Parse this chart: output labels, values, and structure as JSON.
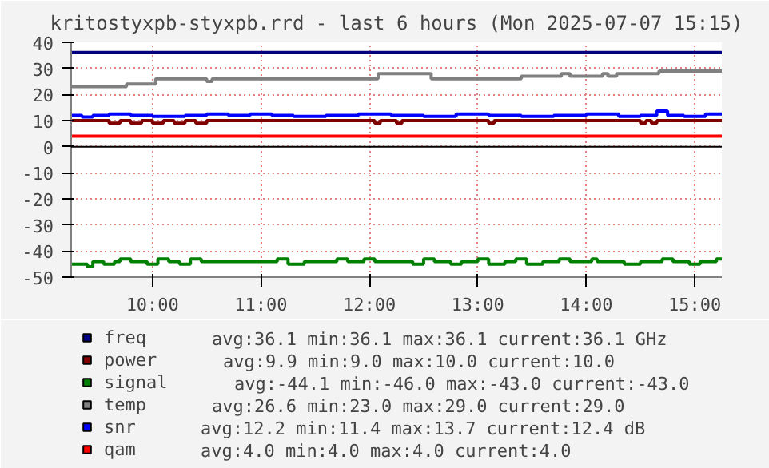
{
  "chart_data": {
    "type": "step",
    "title": "kritostyxpb-styxpb.rrd - last 6 hours (Mon 2025-07-07 15:15)",
    "xlim": [
      9.25,
      15.25
    ],
    "xticks": [
      {
        "value": 10,
        "label": "10:00"
      },
      {
        "value": 11,
        "label": "11:00"
      },
      {
        "value": 12,
        "label": "12:00"
      },
      {
        "value": 13,
        "label": "13:00"
      },
      {
        "value": 14,
        "label": "14:00"
      },
      {
        "value": 15,
        "label": "15:00"
      }
    ],
    "ylim": [
      -50,
      40
    ],
    "yticks": [
      -50,
      -40,
      -30,
      -20,
      -10,
      0,
      10,
      20,
      30,
      40
    ],
    "grid": true,
    "legend": "bottom",
    "ref_lines": [
      {
        "axis": "y",
        "value": 0,
        "color": "#000000"
      }
    ],
    "annotations": [
      "avg:36.1  min:36.1  max:36.1  current:36.1   GHz",
      "avg:9.9  min:9.0  max:10.0  current:10.0",
      "avg:-44.1  min:-46.0  max:-43.0  current:-43.0",
      "avg:26.6  min:23.0  max:29.0  current:29.0",
      "avg:12.2  min:11.4  max:13.7  current:12.4   dB",
      "avg:4.0  min:4.0  max:4.0  current:4.0"
    ],
    "series": [
      {
        "name": "freq",
        "color": "#000080",
        "x": [
          9.25,
          15.25
        ],
        "values": [
          36.1,
          36.1
        ]
      },
      {
        "name": "power",
        "color": "#800000",
        "x": [
          9.25,
          9.6,
          9.7,
          9.8,
          9.9,
          10.0,
          10.1,
          10.2,
          10.3,
          10.4,
          10.5,
          10.6,
          12.05,
          12.1,
          12.25,
          12.3,
          13.1,
          13.15,
          14.5,
          14.55,
          14.6,
          14.65,
          14.7,
          15.25
        ],
        "values": [
          10,
          9,
          10,
          9,
          10,
          9,
          10,
          9,
          10,
          9,
          10,
          10,
          9,
          10,
          9,
          10,
          9,
          10,
          9,
          10,
          9,
          10,
          10,
          10
        ]
      },
      {
        "name": "signal",
        "color": "#008000",
        "x": [
          9.25,
          9.4,
          9.45,
          9.55,
          9.65,
          9.7,
          9.8,
          9.95,
          10.05,
          10.15,
          10.25,
          10.35,
          10.45,
          10.6,
          11.15,
          11.25,
          11.4,
          11.7,
          11.8,
          11.95,
          12.05,
          12.4,
          12.5,
          12.6,
          12.75,
          12.85,
          13.0,
          13.1,
          13.25,
          13.35,
          13.45,
          13.6,
          13.75,
          13.85,
          14.05,
          14.1,
          14.35,
          14.5,
          14.7,
          14.8,
          14.95,
          15.05,
          15.2,
          15.25
        ],
        "values": [
          -45,
          -46,
          -44,
          -45,
          -44,
          -43,
          -44,
          -45,
          -43,
          -44,
          -45,
          -43,
          -44,
          -44,
          -43,
          -45,
          -44,
          -43,
          -44,
          -43,
          -44,
          -45,
          -43,
          -44,
          -45,
          -44,
          -43,
          -45,
          -44,
          -43,
          -45,
          -44,
          -43,
          -44,
          -43,
          -44,
          -45,
          -44,
          -43,
          -44,
          -45,
          -44,
          -43,
          -43
        ]
      },
      {
        "name": "temp",
        "color": "#808080",
        "x": [
          9.25,
          9.76,
          10.03,
          10.5,
          10.55,
          10.65,
          12.08,
          12.57,
          13.4,
          13.77,
          13.85,
          14.15,
          14.2,
          14.28,
          14.67,
          15.25
        ],
        "values": [
          23,
          24,
          26,
          25,
          26,
          26,
          28,
          26,
          27,
          28,
          27,
          28,
          27,
          28,
          29,
          29
        ]
      },
      {
        "name": "snr",
        "color": "#0000ff",
        "x": [
          9.25,
          9.35,
          9.45,
          9.6,
          9.8,
          10.0,
          10.3,
          10.5,
          10.7,
          10.9,
          11.1,
          11.3,
          11.6,
          11.9,
          12.2,
          12.5,
          12.8,
          13.1,
          13.4,
          13.7,
          14.0,
          14.3,
          14.5,
          14.65,
          14.75,
          14.9,
          15.1,
          15.25
        ],
        "values": [
          12,
          11.4,
          12,
          12.5,
          12,
          11.6,
          12,
          12.5,
          12,
          12.5,
          12,
          11.6,
          12,
          12.5,
          12,
          11.6,
          12.5,
          12,
          11.6,
          12,
          12.5,
          11.6,
          12,
          13.7,
          12,
          11.6,
          12.5,
          12.4
        ]
      },
      {
        "name": "qam",
        "color": "#ff0000",
        "x": [
          9.25,
          15.25
        ],
        "values": [
          4.0,
          4.0
        ]
      }
    ]
  }
}
